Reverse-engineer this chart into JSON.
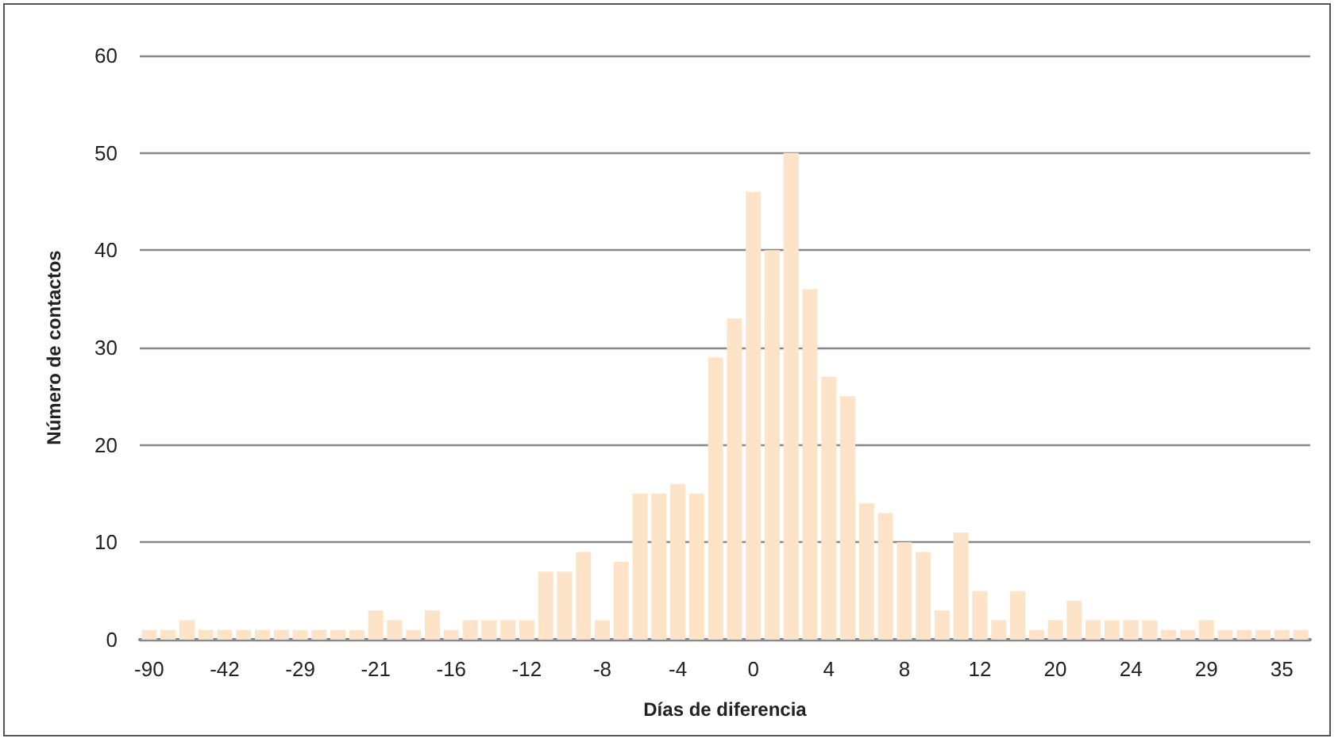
{
  "chart_data": {
    "type": "bar",
    "xlabel": "Días de diferencia",
    "ylabel": "Número de contactos",
    "categories": [
      "-90",
      null,
      null,
      null,
      "-42",
      null,
      null,
      null,
      "-29",
      null,
      null,
      null,
      "-21",
      null,
      null,
      null,
      "-16",
      null,
      null,
      null,
      "-12",
      null,
      null,
      null,
      "-8",
      null,
      null,
      null,
      "-4",
      null,
      null,
      null,
      "0",
      null,
      null,
      null,
      "4",
      null,
      null,
      null,
      "8",
      null,
      null,
      null,
      "12",
      null,
      null,
      null,
      "20",
      null,
      null,
      null,
      "24",
      null,
      null,
      null,
      "29",
      null,
      null,
      null,
      "35",
      null
    ],
    "values": [
      1,
      1,
      2,
      1,
      1,
      1,
      1,
      1,
      1,
      1,
      1,
      1,
      3,
      2,
      1,
      3,
      1,
      2,
      2,
      2,
      2,
      7,
      7,
      9,
      2,
      8,
      15,
      15,
      16,
      15,
      29,
      33,
      46,
      40,
      50,
      36,
      27,
      25,
      14,
      13,
      10,
      9,
      3,
      11,
      5,
      2,
      5,
      1,
      2,
      4,
      2,
      2,
      2,
      2,
      1,
      1,
      2,
      1,
      1,
      1,
      1,
      1
    ],
    "color": "#fde4c9",
    "ylim": [
      0,
      60
    ],
    "yticks": [
      0,
      10,
      20,
      30,
      40,
      50,
      60
    ],
    "grid": "y"
  }
}
